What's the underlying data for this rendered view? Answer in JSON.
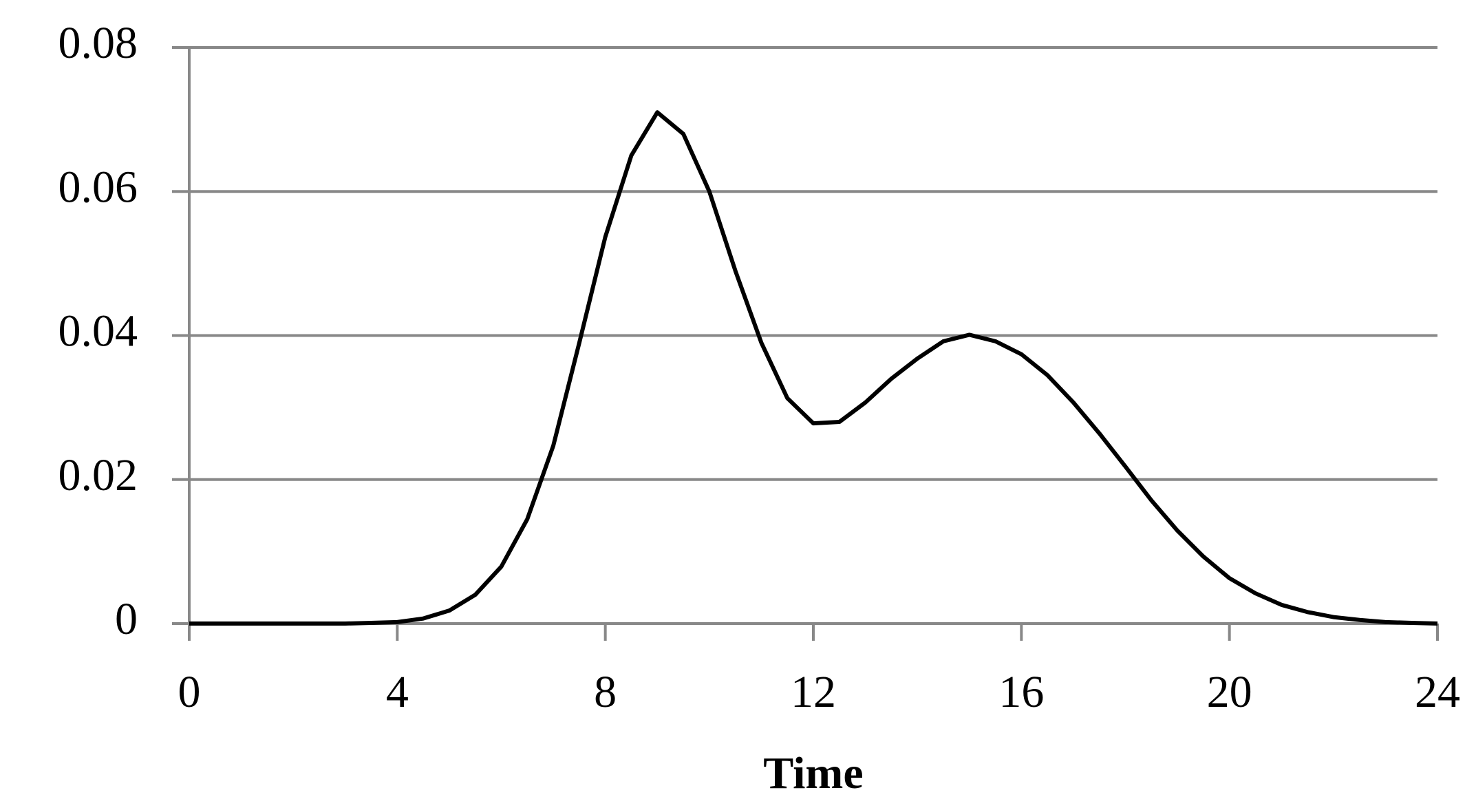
{
  "chart_data": {
    "type": "line",
    "x_label": "Time",
    "x": [
      0,
      0.5,
      1,
      1.5,
      2,
      2.5,
      3,
      3.5,
      4,
      4.5,
      5,
      5.5,
      6,
      6.5,
      7,
      7.5,
      8,
      8.5,
      9,
      9.5,
      10,
      10.5,
      11,
      11.5,
      12,
      12.5,
      13,
      13.5,
      14,
      14.5,
      15,
      15.5,
      16,
      16.5,
      17,
      17.5,
      18,
      18.5,
      19,
      19.5,
      20,
      20.5,
      21,
      21.5,
      22,
      22.5,
      23,
      23.5,
      24
    ],
    "values": [
      0,
      0,
      0,
      0,
      0,
      0,
      0,
      0.0001,
      0.0002,
      0.0007,
      0.0018,
      0.004,
      0.0079,
      0.0145,
      0.0247,
      0.039,
      0.0537,
      0.065,
      0.071,
      0.068,
      0.06,
      0.049,
      0.039,
      0.0313,
      0.0278,
      0.028,
      0.0307,
      0.034,
      0.0368,
      0.0392,
      0.0401,
      0.0392,
      0.0374,
      0.0345,
      0.0307,
      0.0264,
      0.0218,
      0.0171,
      0.0129,
      0.0093,
      0.0063,
      0.0042,
      0.0026,
      0.0016,
      0.0009,
      0.0005,
      0.0002,
      0.0001,
      0
    ],
    "color": "#000000",
    "xlim": [
      0,
      24
    ],
    "xticks": [
      0,
      4,
      8,
      12,
      16,
      20,
      24
    ],
    "ylim": [
      0,
      0.08
    ],
    "yticks": [
      0,
      0.02,
      0.04,
      0.06,
      0.08
    ],
    "grid": true
  }
}
